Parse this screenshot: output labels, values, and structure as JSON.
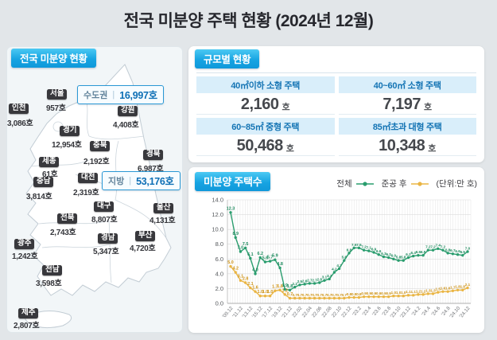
{
  "title": "전국 미분양 주택 현황 (2024년 12월)",
  "map_panel": {
    "header": "전국 미분양 현황",
    "summary_boxes": [
      {
        "label": "수도권",
        "value": "16,997호"
      },
      {
        "label": "지방",
        "value": "53,176호"
      }
    ],
    "regions": [
      {
        "name": "서울",
        "value": "957호"
      },
      {
        "name": "인천",
        "value": "3,086호"
      },
      {
        "name": "경기",
        "value": "12,954호"
      },
      {
        "name": "강원",
        "value": "4,408호"
      },
      {
        "name": "충북",
        "value": "2,192호"
      },
      {
        "name": "세종",
        "value": "61호"
      },
      {
        "name": "충남",
        "value": "3,814호"
      },
      {
        "name": "대전",
        "value": "2,319호"
      },
      {
        "name": "경북",
        "value": "6,987호"
      },
      {
        "name": "대구",
        "value": "8,807호"
      },
      {
        "name": "울산",
        "value": "4,131호"
      },
      {
        "name": "전북",
        "value": "2,743호"
      },
      {
        "name": "경남",
        "value": "5,347호"
      },
      {
        "name": "부산",
        "value": "4,720호"
      },
      {
        "name": "광주",
        "value": "1,242호"
      },
      {
        "name": "전남",
        "value": "3,598호"
      },
      {
        "name": "제주",
        "value": "2,807호"
      }
    ]
  },
  "size_panel": {
    "header": "규모별 현황",
    "cells": [
      {
        "label": "40㎡이하 소형 주택",
        "value": "2,160",
        "unit": "호"
      },
      {
        "label": "40~60㎡ 소형 주택",
        "value": "7,197",
        "unit": "호"
      },
      {
        "label": "60~85㎡ 중형 주택",
        "value": "50,468",
        "unit": "호"
      },
      {
        "label": "85㎡초과 대형 주택",
        "value": "10,348",
        "unit": "호"
      }
    ]
  },
  "chart_panel": {
    "header": "미분양 주택수",
    "legend": [
      {
        "label": "전체",
        "color": "#2a9d6e"
      },
      {
        "label": "준공 후",
        "color": "#eab543"
      }
    ],
    "unit_note": "(단위:만 호)"
  },
  "chart_data": {
    "type": "line",
    "title": "미분양 주택수",
    "unit": "만 호",
    "ylim": [
      0,
      14
    ],
    "ytick_step": 2,
    "grid": true,
    "legend_position": "top-right",
    "x": [
      "'09.12",
      "'10.12",
      "'11.12",
      "'12.12",
      "'13.12",
      "'14.12",
      "'15.12",
      "'16.12",
      "'17.12",
      "'18.12",
      "'19.12",
      "'20.12",
      "'21.12",
      "'22.01",
      "'22.02",
      "'22.03",
      "'22.04",
      "'22.05",
      "'22.06",
      "'22.07",
      "'22.08",
      "'22.09",
      "'22.10",
      "'22.11",
      "'22.12",
      "'23.01",
      "'23.02",
      "'23.03",
      "'23.04",
      "'23.05",
      "'23.06",
      "'23.07",
      "'23.08",
      "'23.09",
      "'23.10",
      "'23.11",
      "'23.12",
      "'24.01",
      "'24.02",
      "'24.03",
      "'24.04",
      "'24.05",
      "'24.06",
      "'24.07",
      "'24.08",
      "'24.09",
      "'24.10",
      "'24.11",
      "'24.12"
    ],
    "tick_every": 2,
    "tick_labels": [
      "'09.12",
      "'11.12",
      "'13.12",
      "'15.12",
      "'17.12",
      "'19.12",
      "'21.12",
      "22.02",
      "22.04",
      "22.06",
      "22.08",
      "22.10",
      "22.12",
      "'23.2",
      "'23.4",
      "'23.6",
      "'23.8",
      "'23.10",
      "'23.12",
      "'24.2",
      "'24.4",
      "'24.6",
      "'24.8",
      "'24.10",
      "'24.12"
    ],
    "series": [
      {
        "name": "전체",
        "color": "#2a9d6e",
        "label_color": "#1d8a5d",
        "values": [
          12.3,
          8.9,
          7.0,
          7.5,
          6.1,
          4.0,
          6.2,
          5.6,
          5.7,
          5.9,
          4.8,
          1.9,
          1.8,
          2.2,
          2.5,
          2.6,
          2.7,
          2.7,
          2.8,
          3.1,
          3.3,
          4.2,
          4.7,
          5.8,
          6.8,
          7.5,
          7.5,
          7.2,
          7.1,
          6.9,
          6.6,
          6.3,
          6.2,
          6.0,
          5.8,
          5.8,
          6.2,
          6.4,
          6.5,
          6.5,
          7.2,
          7.2,
          7.4,
          7.2,
          6.8,
          6.7,
          6.6,
          6.5,
          7.0
        ]
      },
      {
        "name": "준공 후",
        "color": "#eab543",
        "label_color": "#cf9418",
        "values": [
          5.0,
          4.2,
          3.1,
          2.8,
          2.1,
          1.6,
          1.0,
          1.0,
          1.0,
          1.7,
          1.8,
          1.2,
          0.7,
          0.7,
          0.7,
          0.7,
          0.7,
          0.7,
          0.7,
          0.7,
          0.7,
          0.7,
          0.7,
          0.7,
          0.8,
          0.8,
          0.8,
          0.9,
          0.9,
          0.9,
          0.9,
          0.9,
          0.9,
          1.0,
          1.0,
          1.0,
          1.1,
          1.1,
          1.2,
          1.2,
          1.3,
          1.3,
          1.5,
          1.6,
          1.6,
          1.7,
          1.8,
          1.8,
          2.1
        ]
      }
    ]
  },
  "colors": {
    "page_background": "#e2e6e9",
    "tab_gradient_top": "#4cc9f3",
    "tab_gradient_bottom": "#0f98da",
    "accent_blue": "#0e6fb5",
    "cell_header_bg": "#d9eefa",
    "total_line": "#2a9d6e",
    "completed_line": "#eab543"
  }
}
